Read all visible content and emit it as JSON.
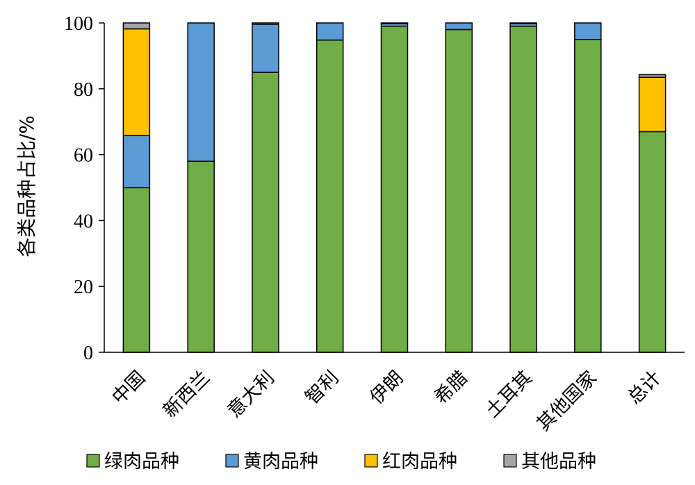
{
  "chart_data": {
    "type": "bar",
    "stacked": true,
    "categories": [
      "中国",
      "新西兰",
      "意大利",
      "智利",
      "伊朗",
      "希腊",
      "土耳其",
      "其他国家",
      "总计"
    ],
    "series": [
      {
        "name": "绿肉品种",
        "color": "#70ad47",
        "values": [
          50,
          58,
          85,
          94.8,
          99,
          98,
          99,
          95,
          67
        ]
      },
      {
        "name": "黄肉品种",
        "color": "#5b9bd5",
        "values": [
          15.8,
          42,
          14.6,
          5.2,
          0.8,
          2,
          0.8,
          5,
          0
        ]
      },
      {
        "name": "红肉品种",
        "color": "#ffc000",
        "values": [
          32.4,
          0,
          0,
          0,
          0,
          0,
          0,
          0,
          16.5
        ]
      },
      {
        "name": "其他品种",
        "color": "#a5a5a5",
        "values": [
          1.8,
          0,
          0.4,
          0,
          0.2,
          0,
          0.2,
          0,
          0.8
        ]
      }
    ],
    "title": "",
    "xlabel": "",
    "ylabel": "各类品种占比/%",
    "ylim": [
      0,
      100
    ],
    "yticks": [
      0,
      20,
      40,
      60,
      80,
      100
    ],
    "grid": false,
    "legend": "bottom"
  }
}
